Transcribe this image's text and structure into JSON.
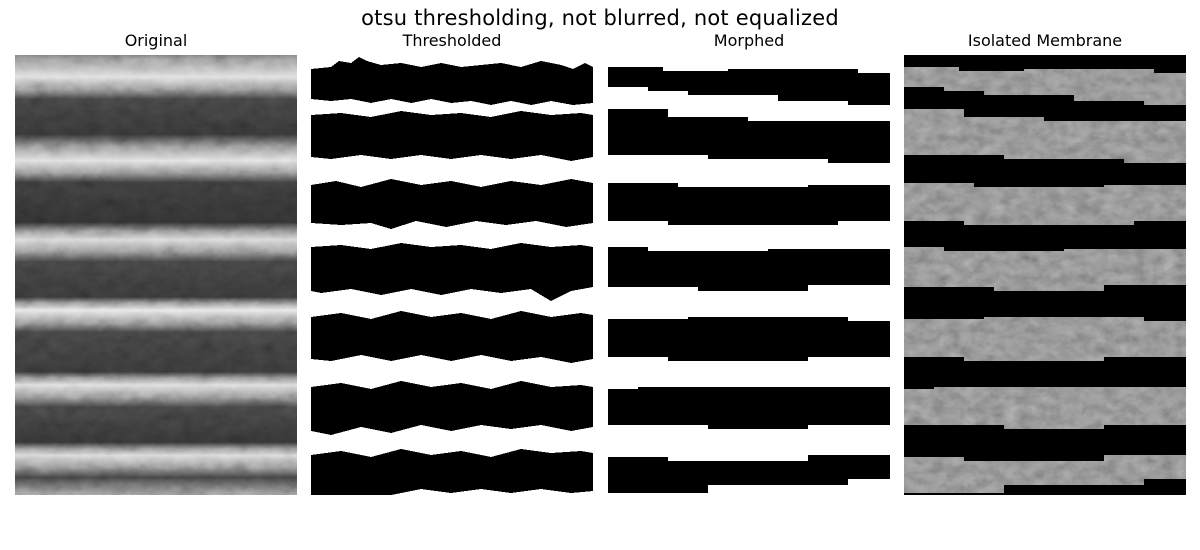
{
  "figure": {
    "suptitle": "otsu thresholding, not blurred, not equalized",
    "panels": [
      {
        "title": "Original",
        "kind": "grayscale-micrograph"
      },
      {
        "title": "Thresholded",
        "kind": "binary-mask"
      },
      {
        "title": "Morphed",
        "kind": "binary-mask-smoothed"
      },
      {
        "title": "Isolated Membrane",
        "kind": "masked-grayscale"
      }
    ],
    "colors": {
      "background": "#ffffff",
      "mask_on": "#000000",
      "mask_off": "#ffffff",
      "tissue_mid": "#7a7a7a"
    }
  }
}
